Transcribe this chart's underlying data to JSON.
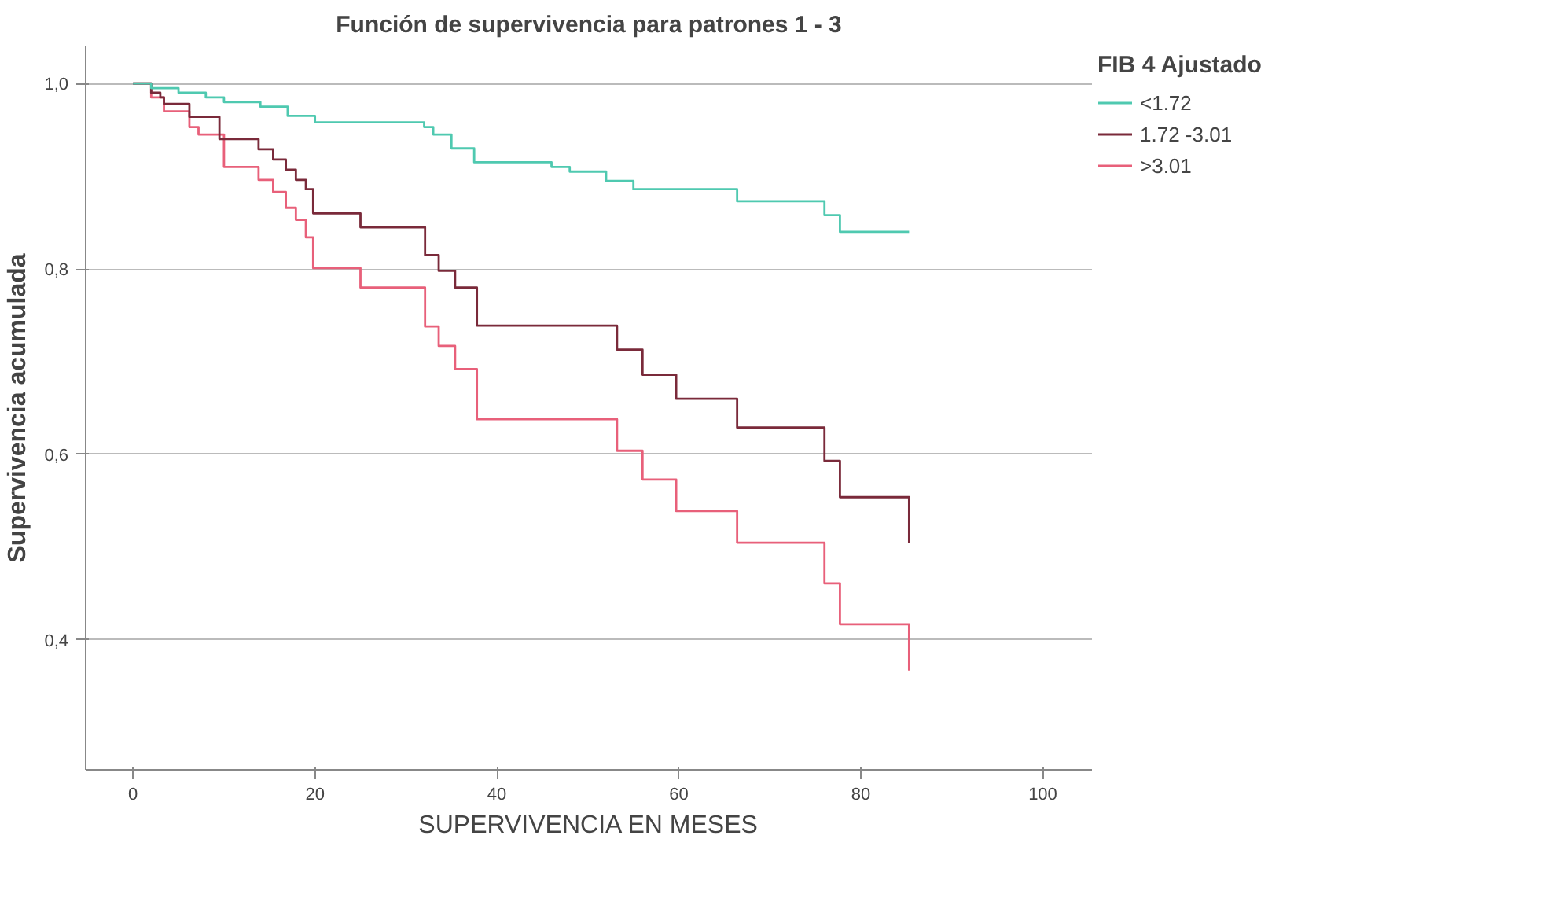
{
  "chart_data": {
    "type": "step",
    "title": "Función de supervivencia para patrones 1 - 3",
    "xlabel": "SUPERVIVENCIA EN MESES",
    "ylabel": "Supervivencia acumulada",
    "legend_title": "FIB 4 Ajustado",
    "xlim": [
      -5.2,
      105.4
    ],
    "xticks": [
      0,
      20,
      40,
      60,
      80,
      100
    ],
    "ylim": [
      0.26,
      1.04
    ],
    "yticks": [
      {
        "value": 0.4,
        "label": "0,4"
      },
      {
        "value": 0.6,
        "label": "0,6"
      },
      {
        "value": 0.8,
        "label": "0,8"
      },
      {
        "value": 1.0,
        "label": "1,0"
      }
    ],
    "grid": "y",
    "legend": "top right",
    "marker": "none",
    "line_style": "solid",
    "series": [
      {
        "name": "<1.72",
        "color": "#4fc9b0",
        "x": [
          0,
          2,
          5,
          8,
          10,
          14,
          17,
          20,
          32,
          33,
          35,
          37.5,
          46,
          48,
          52,
          55,
          66.4,
          76,
          77.7,
          85.3
        ],
        "values": [
          1.0,
          0.995,
          0.99,
          0.985,
          0.98,
          0.975,
          0.965,
          0.958,
          0.953,
          0.945,
          0.93,
          0.915,
          0.91,
          0.905,
          0.895,
          0.886,
          0.873,
          0.858,
          0.84,
          0.84
        ]
      },
      {
        "name": "1.72 -3.01",
        "color": "#7a2a3a",
        "x": [
          0,
          1.5,
          2,
          3,
          3.4,
          6.2,
          9.5,
          13.8,
          15.4,
          16.8,
          17.9,
          19,
          19.8,
          25,
          32.1,
          33.6,
          35.4,
          37.8,
          53.2,
          56,
          59.7,
          66.4,
          76,
          77.7,
          85.3
        ],
        "values": [
          1.0,
          1.0,
          0.99,
          0.985,
          0.978,
          0.964,
          0.94,
          0.929,
          0.918,
          0.907,
          0.896,
          0.886,
          0.86,
          0.845,
          0.815,
          0.798,
          0.78,
          0.739,
          0.713,
          0.686,
          0.66,
          0.629,
          0.593,
          0.554,
          0.505
        ]
      },
      {
        "name": ">3.01",
        "color": "#e8607a",
        "x": [
          0,
          2,
          3.4,
          6.2,
          7.2,
          10,
          13.8,
          15.4,
          16.8,
          17.9,
          19,
          19.8,
          25,
          32.1,
          33.6,
          35.4,
          37.8,
          53.2,
          56,
          59.7,
          66.4,
          76,
          77.7,
          85.3
        ],
        "values": [
          1.0,
          0.985,
          0.97,
          0.953,
          0.945,
          0.91,
          0.896,
          0.883,
          0.866,
          0.853,
          0.834,
          0.801,
          0.78,
          0.738,
          0.717,
          0.692,
          0.638,
          0.604,
          0.573,
          0.539,
          0.505,
          0.461,
          0.417,
          0.367
        ]
      }
    ]
  }
}
